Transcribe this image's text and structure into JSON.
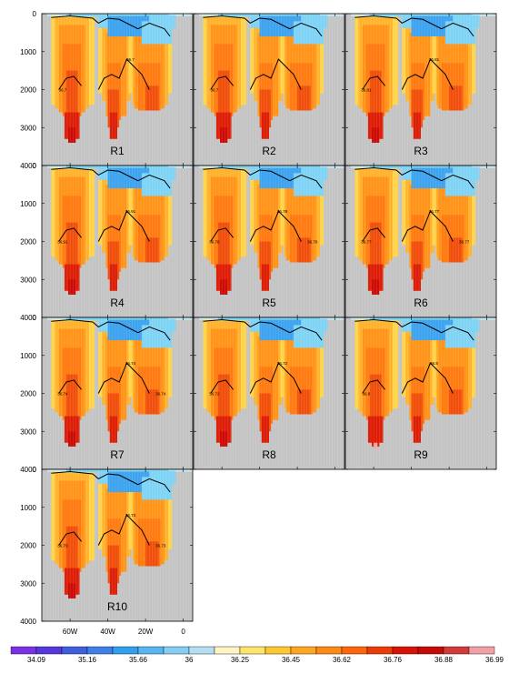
{
  "chart_data": {
    "type": "heatmap",
    "title": "",
    "xlabel": "",
    "ylabel": "",
    "y_axis": {
      "range": [
        0,
        4000
      ],
      "ticks": [
        "0",
        "1000",
        "2000",
        "3000",
        "4000"
      ]
    },
    "x_axis": {
      "range": [
        -75,
        5
      ],
      "ticks": [
        {
          "value": -60,
          "label": "60W"
        },
        {
          "value": -40,
          "label": "40W"
        },
        {
          "value": -20,
          "label": "20W"
        },
        {
          "value": 0,
          "label": "0"
        }
      ]
    },
    "grid": true,
    "colorbar": {
      "orientation": "horizontal",
      "placement": "bottom",
      "colors": [
        "#7b2fe6",
        "#5637de",
        "#3d5fe0",
        "#3e7fe8",
        "#2f9fee",
        "#55b6f2",
        "#85cdf4",
        "#b4def2",
        "#fff4c2",
        "#ffe36a",
        "#ffc82e",
        "#ffa621",
        "#ff8a12",
        "#ff650a",
        "#ec3b06",
        "#d81205",
        "#c60a06",
        "#d43a3a",
        "#f2a0a5"
      ],
      "labels": [
        "34.09",
        "35.16",
        "35.66",
        "36",
        "36.25",
        "36.45",
        "36.62",
        "36.76",
        "36.88",
        "36.99"
      ]
    },
    "contour_level": 36.7,
    "panels": [
      {
        "name": "R1",
        "contour_labels": [
          "36.7",
          "36.7"
        ]
      },
      {
        "name": "R2",
        "contour_labels": [
          "36.7"
        ]
      },
      {
        "name": "R3",
        "contour_labels": [
          "36.81",
          "36.81"
        ]
      },
      {
        "name": "R4",
        "contour_labels": [
          "36.91",
          "36.91"
        ]
      },
      {
        "name": "R5",
        "contour_labels": [
          "36.78",
          "36.78",
          "36.78"
        ]
      },
      {
        "name": "R6",
        "contour_labels": [
          "36.77",
          "36.77",
          "36.77"
        ]
      },
      {
        "name": "R7",
        "contour_labels": [
          "36.74",
          "36.74",
          "36.74"
        ]
      },
      {
        "name": "R8",
        "contour_labels": [
          "36.72",
          "36.72"
        ]
      },
      {
        "name": "R9",
        "contour_labels": [
          "36.8",
          "36.8"
        ]
      },
      {
        "name": "R10",
        "contour_labels": [
          "36.73",
          "36.73",
          "36.73"
        ]
      }
    ]
  }
}
